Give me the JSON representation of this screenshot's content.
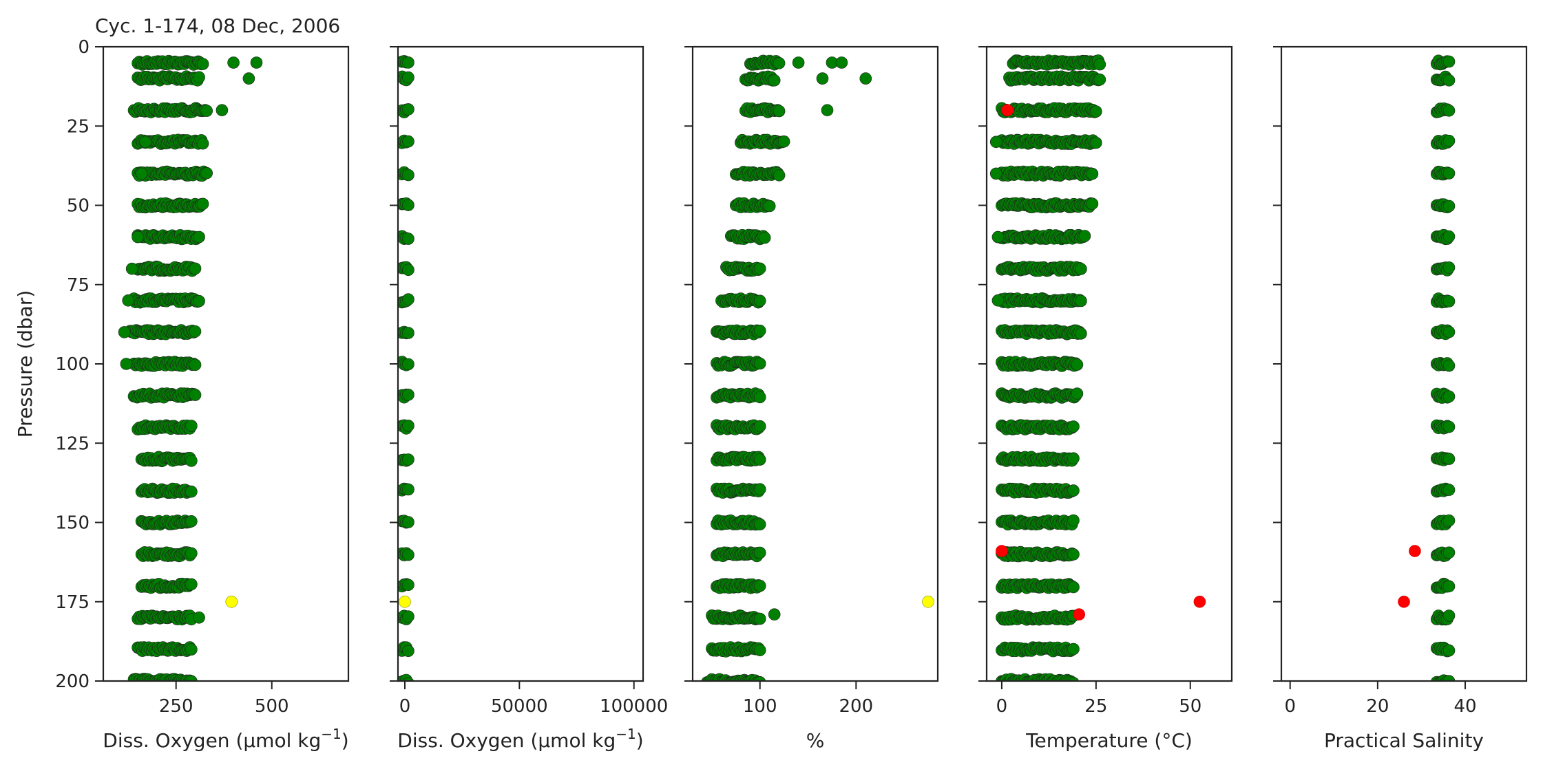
{
  "chart_data": {
    "type": "scatter",
    "title": "Cyc. 1-174, 08 Dec, 2006",
    "ylabel": "Pressure (dbar)",
    "ylim": [
      200,
      0
    ],
    "yticks": [
      0,
      25,
      50,
      75,
      100,
      125,
      150,
      175,
      200
    ],
    "pressure_levels": [
      5,
      10,
      20,
      30,
      40,
      50,
      60,
      70,
      80,
      90,
      100,
      110,
      120,
      130,
      140,
      150,
      160,
      170,
      180,
      190,
      200
    ],
    "colors": {
      "good": "#008000",
      "probably_bad": "#ffff00",
      "bad": "#ff0000",
      "edge": "#222222"
    },
    "panels": [
      {
        "id": "doxy",
        "xlabel": "Diss. Oxygen (µmol kg",
        "xlabel_sup": "−1",
        "xlabel_end": ")",
        "xlim": [
          60,
          700
        ],
        "xticks": [
          250,
          500
        ],
        "bands": [
          [
            150,
            320
          ],
          [
            150,
            310
          ],
          [
            140,
            330
          ],
          [
            150,
            320
          ],
          [
            150,
            330
          ],
          [
            150,
            320
          ],
          [
            150,
            310
          ],
          [
            150,
            300
          ],
          [
            140,
            310
          ],
          [
            130,
            300
          ],
          [
            140,
            300
          ],
          [
            140,
            300
          ],
          [
            150,
            290
          ],
          [
            160,
            290
          ],
          [
            160,
            290
          ],
          [
            160,
            290
          ],
          [
            160,
            290
          ],
          [
            160,
            290
          ],
          [
            150,
            290
          ],
          [
            150,
            290
          ],
          [
            140,
            290
          ]
        ],
        "outliers": [
          {
            "x": 400,
            "y": 5,
            "flag": "good"
          },
          {
            "x": 460,
            "y": 5,
            "flag": "good"
          },
          {
            "x": 440,
            "y": 10,
            "flag": "good"
          },
          {
            "x": 370,
            "y": 20,
            "flag": "good"
          },
          {
            "x": 170,
            "y": 30,
            "flag": "good"
          },
          {
            "x": 160,
            "y": 40,
            "flag": "good"
          },
          {
            "x": 150,
            "y": 60,
            "flag": "good"
          },
          {
            "x": 135,
            "y": 70,
            "flag": "good"
          },
          {
            "x": 125,
            "y": 80,
            "flag": "good"
          },
          {
            "x": 115,
            "y": 90,
            "flag": "good"
          },
          {
            "x": 120,
            "y": 100,
            "flag": "good"
          },
          {
            "x": 310,
            "y": 180,
            "flag": "good"
          },
          {
            "x": 395,
            "y": 175,
            "flag": "probably_bad"
          }
        ]
      },
      {
        "id": "doxy_adjusted",
        "xlabel": "Diss. Oxygen (µmol kg",
        "xlabel_sup": "−1",
        "xlabel_end": ")",
        "xlim": [
          -3000,
          104000
        ],
        "xticks": [
          0,
          50000,
          100000
        ],
        "bands": [
          [
            -1200,
            1500
          ],
          [
            -1200,
            1500
          ],
          [
            -1200,
            1500
          ],
          [
            -1200,
            1500
          ],
          [
            -1200,
            1500
          ],
          [
            -1200,
            1500
          ],
          [
            -1200,
            1500
          ],
          [
            -1200,
            1500
          ],
          [
            -1200,
            1500
          ],
          [
            -1200,
            1500
          ],
          [
            -1200,
            1500
          ],
          [
            -1200,
            1500
          ],
          [
            -1200,
            1500
          ],
          [
            -1200,
            1500
          ],
          [
            -1200,
            1500
          ],
          [
            -1200,
            1500
          ],
          [
            -1200,
            1500
          ],
          [
            -1200,
            1500
          ],
          [
            -1200,
            1500
          ],
          [
            -1200,
            1500
          ],
          [
            -1200,
            1500
          ]
        ],
        "outliers": [
          {
            "x": 0,
            "y": 175,
            "flag": "probably_bad"
          }
        ]
      },
      {
        "id": "oxygen_saturation",
        "xlabel": "%",
        "xlim": [
          30,
          285
        ],
        "xticks": [
          100,
          200
        ],
        "bands": [
          [
            90,
            120
          ],
          [
            85,
            115
          ],
          [
            85,
            120
          ],
          [
            80,
            125
          ],
          [
            75,
            120
          ],
          [
            75,
            110
          ],
          [
            70,
            105
          ],
          [
            65,
            100
          ],
          [
            60,
            100
          ],
          [
            55,
            100
          ],
          [
            55,
            100
          ],
          [
            55,
            100
          ],
          [
            55,
            100
          ],
          [
            55,
            100
          ],
          [
            55,
            100
          ],
          [
            55,
            100
          ],
          [
            55,
            100
          ],
          [
            55,
            100
          ],
          [
            50,
            100
          ],
          [
            50,
            100
          ],
          [
            45,
            100
          ]
        ],
        "outliers": [
          {
            "x": 140,
            "y": 5,
            "flag": "good"
          },
          {
            "x": 175,
            "y": 5,
            "flag": "good"
          },
          {
            "x": 185,
            "y": 5,
            "flag": "good"
          },
          {
            "x": 165,
            "y": 10,
            "flag": "good"
          },
          {
            "x": 210,
            "y": 10,
            "flag": "good"
          },
          {
            "x": 170,
            "y": 20,
            "flag": "good"
          },
          {
            "x": 115,
            "y": 179,
            "flag": "good"
          },
          {
            "x": 275,
            "y": 175,
            "flag": "probably_bad"
          }
        ]
      },
      {
        "id": "temperature",
        "xlabel": "Temperature (°C)",
        "xlim": [
          -4,
          61
        ],
        "xticks": [
          0,
          25,
          50
        ],
        "bands": [
          [
            3,
            26
          ],
          [
            2,
            26
          ],
          [
            0,
            25
          ],
          [
            0,
            25
          ],
          [
            0,
            24
          ],
          [
            0,
            24
          ],
          [
            0,
            22
          ],
          [
            0,
            21
          ],
          [
            0,
            21
          ],
          [
            0,
            21
          ],
          [
            0,
            20
          ],
          [
            0,
            20
          ],
          [
            0,
            19
          ],
          [
            0,
            19
          ],
          [
            0,
            19
          ],
          [
            0,
            19
          ],
          [
            0,
            19
          ],
          [
            0,
            19
          ],
          [
            0,
            19
          ],
          [
            0,
            19
          ],
          [
            0,
            19
          ]
        ],
        "outliers": [
          {
            "x": -1.5,
            "y": 30,
            "flag": "good"
          },
          {
            "x": -1.5,
            "y": 40,
            "flag": "good"
          },
          {
            "x": -1,
            "y": 60,
            "flag": "good"
          },
          {
            "x": -1,
            "y": 80,
            "flag": "good"
          },
          {
            "x": 1.5,
            "y": 20,
            "flag": "bad"
          },
          {
            "x": 0,
            "y": 159,
            "flag": "bad"
          },
          {
            "x": 20.5,
            "y": 179,
            "flag": "bad"
          },
          {
            "x": 52.5,
            "y": 175,
            "flag": "bad"
          }
        ]
      },
      {
        "id": "salinity",
        "xlabel": "Practical Salinity",
        "xlim": [
          -2,
          54
        ],
        "xticks": [
          0,
          20,
          40
        ],
        "bands": [
          [
            33.5,
            36.3
          ],
          [
            33.5,
            36.3
          ],
          [
            33.5,
            36.3
          ],
          [
            33.5,
            36.3
          ],
          [
            33.5,
            36.3
          ],
          [
            33.5,
            36.3
          ],
          [
            33.5,
            36.3
          ],
          [
            33.5,
            36.3
          ],
          [
            33.5,
            36.3
          ],
          [
            33.5,
            36.3
          ],
          [
            33.5,
            36.3
          ],
          [
            33.5,
            36.3
          ],
          [
            33.5,
            36.3
          ],
          [
            33.5,
            36.3
          ],
          [
            33.5,
            36.3
          ],
          [
            33.5,
            36.3
          ],
          [
            33.5,
            36.3
          ],
          [
            33.5,
            36.3
          ],
          [
            33.5,
            36.3
          ],
          [
            33.5,
            36.3
          ],
          [
            33.5,
            36.3
          ]
        ],
        "outliers": [
          {
            "x": 28.5,
            "y": 159,
            "flag": "bad"
          },
          {
            "x": 26,
            "y": 175,
            "flag": "bad"
          }
        ]
      }
    ]
  }
}
